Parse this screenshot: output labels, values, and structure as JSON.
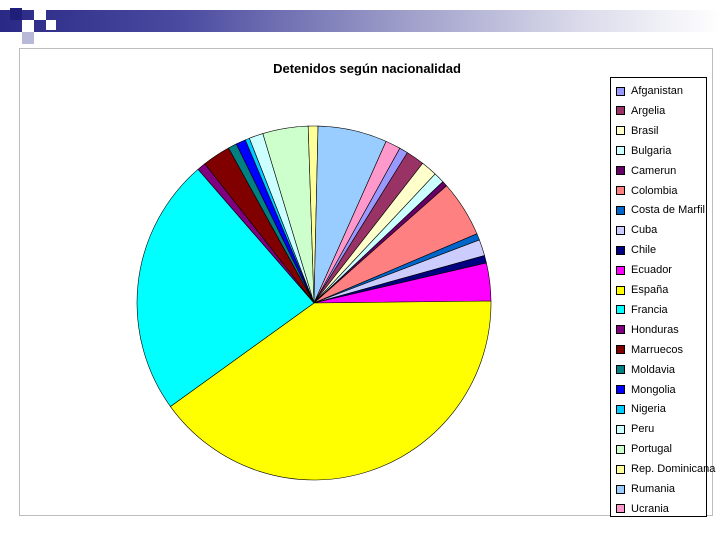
{
  "chart_data": {
    "type": "pie",
    "title": "Detenidos según nacionalidad",
    "legend": "right",
    "slices": [
      {
        "name": "Afganistan",
        "value": 0.8,
        "color": "#9999ff"
      },
      {
        "name": "Argelia",
        "value": 1.7,
        "color": "#993366"
      },
      {
        "name": "Brasil",
        "value": 1.5,
        "color": "#ffffcc"
      },
      {
        "name": "Bulgaria",
        "value": 1.0,
        "color": "#ccffff"
      },
      {
        "name": "Camerun",
        "value": 0.5,
        "color": "#660066"
      },
      {
        "name": "Colombia",
        "value": 5.2,
        "color": "#ff8080"
      },
      {
        "name": "Costa de Marfil",
        "value": 0.6,
        "color": "#0066cc"
      },
      {
        "name": "Cuba",
        "value": 1.5,
        "color": "#ccccff"
      },
      {
        "name": "Chile",
        "value": 0.7,
        "color": "#000080"
      },
      {
        "name": "Ecuador",
        "value": 3.5,
        "color": "#ff00ff"
      },
      {
        "name": "España",
        "value": 40.8,
        "color": "#ffff00"
      },
      {
        "name": "Francia",
        "value": 23.9,
        "color": "#00ffff"
      },
      {
        "name": "Honduras",
        "value": 0.8,
        "color": "#800080"
      },
      {
        "name": "Marruecos",
        "value": 2.6,
        "color": "#800000"
      },
      {
        "name": "Moldavia",
        "value": 0.8,
        "color": "#008080"
      },
      {
        "name": "Mongolia",
        "value": 0.9,
        "color": "#0000ff"
      },
      {
        "name": "Nigeria",
        "value": 0.4,
        "color": "#00ccff"
      },
      {
        "name": "Peru",
        "value": 1.3,
        "color": "#ccffff"
      },
      {
        "name": "Portugal",
        "value": 4.2,
        "color": "#ccffcc"
      },
      {
        "name": "Rep. Dominicana",
        "value": 0.9,
        "color": "#ffff99"
      },
      {
        "name": "Rumania",
        "value": 6.4,
        "color": "#99ccff"
      },
      {
        "name": "Ucrania",
        "value": 1.4,
        "color": "#ff99cc"
      }
    ]
  }
}
